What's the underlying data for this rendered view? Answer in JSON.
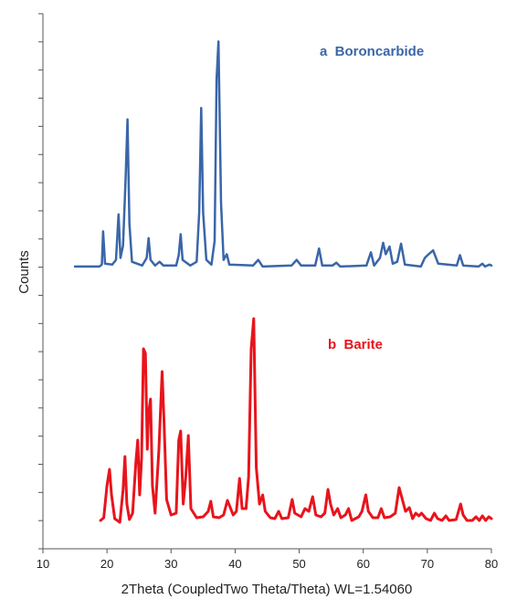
{
  "chart_data": {
    "type": "line",
    "title": "",
    "xlabel": "2Theta (CoupledTwo Theta/Theta) WL=1.54060",
    "ylabel": "Counts",
    "xlim": [
      10,
      80
    ],
    "x_ticks": [
      "10",
      "20",
      "30",
      "40",
      "50",
      "60",
      "70",
      "80"
    ],
    "grid": false,
    "series": [
      {
        "name": "a  Boroncarbide",
        "color": "#3a66a8",
        "offset": "upper",
        "points": [
          [
            15,
            3
          ],
          [
            18.8,
            3
          ],
          [
            19.2,
            5
          ],
          [
            19.4,
            40
          ],
          [
            19.7,
            6
          ],
          [
            20.8,
            5
          ],
          [
            21.4,
            10
          ],
          [
            21.8,
            58
          ],
          [
            22.1,
            12
          ],
          [
            22.5,
            25
          ],
          [
            22.9,
            95
          ],
          [
            23.2,
            158
          ],
          [
            23.5,
            48
          ],
          [
            23.9,
            8
          ],
          [
            25.5,
            4
          ],
          [
            26.2,
            12
          ],
          [
            26.5,
            33
          ],
          [
            26.8,
            10
          ],
          [
            27.5,
            4
          ],
          [
            28.2,
            8
          ],
          [
            28.8,
            4
          ],
          [
            30.8,
            4
          ],
          [
            31.2,
            15
          ],
          [
            31.5,
            37
          ],
          [
            31.8,
            10
          ],
          [
            33,
            4
          ],
          [
            34,
            8
          ],
          [
            34.4,
            60
          ],
          [
            34.7,
            170
          ],
          [
            35,
            60
          ],
          [
            35.5,
            10
          ],
          [
            36.3,
            5
          ],
          [
            36.8,
            30
          ],
          [
            37.1,
            200
          ],
          [
            37.4,
            240
          ],
          [
            37.8,
            70
          ],
          [
            38.2,
            10
          ],
          [
            38.7,
            16
          ],
          [
            39.1,
            5
          ],
          [
            42.8,
            4
          ],
          [
            43.6,
            10
          ],
          [
            44.3,
            3
          ],
          [
            48.8,
            4
          ],
          [
            49.6,
            10
          ],
          [
            50.3,
            4
          ],
          [
            52.5,
            4
          ],
          [
            53.1,
            22
          ],
          [
            53.6,
            4
          ],
          [
            55.2,
            4
          ],
          [
            55.8,
            7
          ],
          [
            56.4,
            3
          ],
          [
            60.5,
            4
          ],
          [
            61.2,
            18
          ],
          [
            61.7,
            4
          ],
          [
            62.6,
            12
          ],
          [
            63.1,
            28
          ],
          [
            63.5,
            16
          ],
          [
            64.1,
            24
          ],
          [
            64.6,
            6
          ],
          [
            65.3,
            8
          ],
          [
            65.9,
            27
          ],
          [
            66.5,
            5
          ],
          [
            69,
            3
          ],
          [
            69.6,
            12
          ],
          [
            70.2,
            16
          ],
          [
            70.9,
            20
          ],
          [
            71.7,
            6
          ],
          [
            74.6,
            4
          ],
          [
            75.1,
            15
          ],
          [
            75.6,
            4
          ],
          [
            78,
            3
          ],
          [
            78.6,
            6
          ],
          [
            79,
            3
          ],
          [
            79.7,
            5
          ],
          [
            80,
            4
          ]
        ]
      },
      {
        "name": "b  Barite",
        "color": "#e8141c",
        "offset": "lower",
        "points": [
          [
            19,
            12
          ],
          [
            19.5,
            15
          ],
          [
            20,
            50
          ],
          [
            20.4,
            68
          ],
          [
            20.7,
            40
          ],
          [
            21.2,
            14
          ],
          [
            22,
            10
          ],
          [
            22.5,
            45
          ],
          [
            22.8,
            82
          ],
          [
            23.1,
            30
          ],
          [
            23.5,
            13
          ],
          [
            24,
            20
          ],
          [
            24.5,
            75
          ],
          [
            24.8,
            100
          ],
          [
            25.1,
            40
          ],
          [
            25.4,
            80
          ],
          [
            25.7,
            200
          ],
          [
            26,
            195
          ],
          [
            26.3,
            90
          ],
          [
            26.5,
            130
          ],
          [
            26.8,
            145
          ],
          [
            27.1,
            50
          ],
          [
            27.5,
            20
          ],
          [
            28.1,
            90
          ],
          [
            28.6,
            175
          ],
          [
            28.9,
            120
          ],
          [
            29.3,
            35
          ],
          [
            30,
            18
          ],
          [
            30.8,
            20
          ],
          [
            31.2,
            100
          ],
          [
            31.5,
            110
          ],
          [
            31.9,
            30
          ],
          [
            32.3,
            60
          ],
          [
            32.7,
            105
          ],
          [
            33.1,
            25
          ],
          [
            34,
            15
          ],
          [
            35,
            16
          ],
          [
            35.8,
            22
          ],
          [
            36.2,
            33
          ],
          [
            36.6,
            16
          ],
          [
            37.5,
            15
          ],
          [
            38.2,
            18
          ],
          [
            38.8,
            34
          ],
          [
            39.2,
            27
          ],
          [
            39.7,
            18
          ],
          [
            40.2,
            22
          ],
          [
            40.7,
            58
          ],
          [
            41.1,
            25
          ],
          [
            41.7,
            25
          ],
          [
            42.1,
            60
          ],
          [
            42.5,
            200
          ],
          [
            42.9,
            233
          ],
          [
            43.3,
            70
          ],
          [
            43.8,
            30
          ],
          [
            44.3,
            40
          ],
          [
            44.7,
            22
          ],
          [
            45.5,
            15
          ],
          [
            46.2,
            14
          ],
          [
            46.8,
            22
          ],
          [
            47.3,
            14
          ],
          [
            48.3,
            15
          ],
          [
            48.9,
            35
          ],
          [
            49.3,
            20
          ],
          [
            50.3,
            16
          ],
          [
            50.9,
            25
          ],
          [
            51.5,
            22
          ],
          [
            52.1,
            38
          ],
          [
            52.6,
            18
          ],
          [
            53.4,
            16
          ],
          [
            54,
            20
          ],
          [
            54.5,
            46
          ],
          [
            54.9,
            30
          ],
          [
            55.4,
            18
          ],
          [
            56,
            25
          ],
          [
            56.5,
            15
          ],
          [
            57.2,
            18
          ],
          [
            57.7,
            25
          ],
          [
            58.2,
            12
          ],
          [
            59.3,
            16
          ],
          [
            59.8,
            22
          ],
          [
            60.4,
            40
          ],
          [
            60.8,
            22
          ],
          [
            61.5,
            15
          ],
          [
            62.3,
            15
          ],
          [
            62.8,
            25
          ],
          [
            63.3,
            15
          ],
          [
            64.2,
            16
          ],
          [
            65,
            20
          ],
          [
            65.6,
            48
          ],
          [
            66.1,
            35
          ],
          [
            66.6,
            22
          ],
          [
            67.2,
            26
          ],
          [
            67.7,
            14
          ],
          [
            68.2,
            20
          ],
          [
            68.7,
            17
          ],
          [
            69.1,
            20
          ],
          [
            69.8,
            14
          ],
          [
            70.5,
            12
          ],
          [
            71.1,
            20
          ],
          [
            71.6,
            14
          ],
          [
            72.3,
            12
          ],
          [
            72.9,
            17
          ],
          [
            73.4,
            12
          ],
          [
            74.5,
            13
          ],
          [
            75.2,
            30
          ],
          [
            75.6,
            18
          ],
          [
            76.2,
            12
          ],
          [
            77,
            12
          ],
          [
            77.6,
            16
          ],
          [
            78.1,
            12
          ],
          [
            78.6,
            17
          ],
          [
            79.1,
            12
          ],
          [
            79.6,
            16
          ],
          [
            80,
            14
          ]
        ]
      }
    ]
  }
}
